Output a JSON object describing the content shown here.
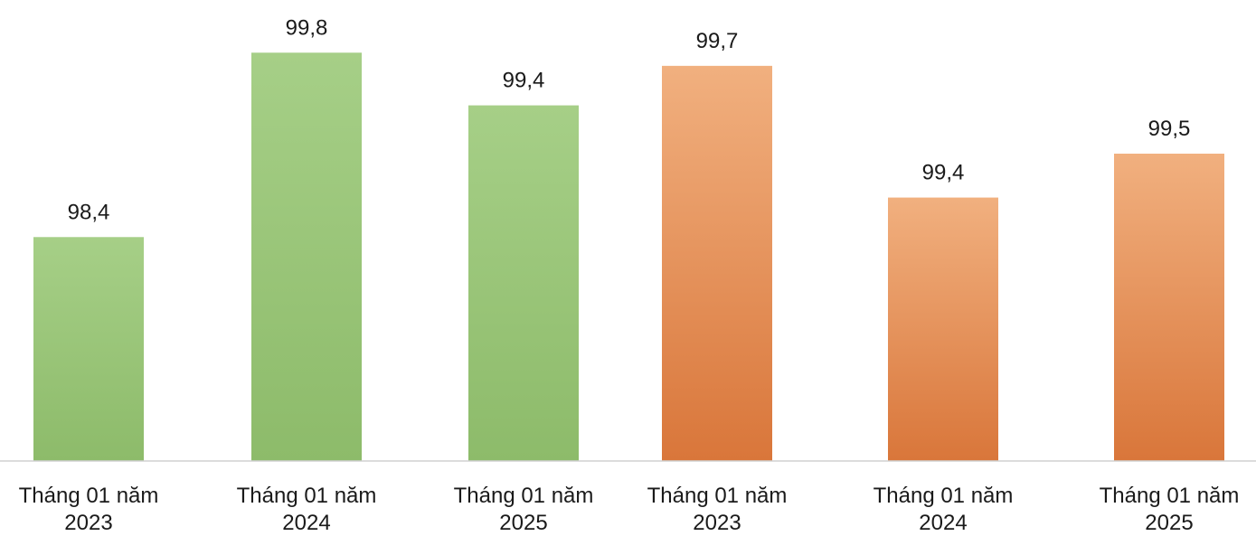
{
  "chart_data": [
    {
      "type": "bar",
      "title": "",
      "xlabel": "",
      "ylabel": "",
      "categories": [
        "Tháng 01 năm 2023",
        "Tháng 01 năm 2024",
        "Tháng 01 năm 2025"
      ],
      "values": [
        98.4,
        99.8,
        99.4
      ],
      "value_labels": [
        "98,4",
        "99,8",
        "99,4"
      ],
      "ylim": [
        96.7,
        100.2
      ],
      "color": "#8dbb6a",
      "color_light": "#a6cf87",
      "grid": false,
      "legend": "none"
    },
    {
      "type": "bar",
      "title": "",
      "xlabel": "",
      "ylabel": "",
      "categories": [
        "Tháng 01 năm 2023",
        "Tháng 01 năm 2024",
        "Tháng 01 năm 2025"
      ],
      "values": [
        99.7,
        99.4,
        99.5
      ],
      "value_labels": [
        "99,7",
        "99,4",
        "99,5"
      ],
      "ylim": [
        98.8,
        99.85
      ],
      "color": "#d9763a",
      "color_light": "#f1b07f",
      "grid": false,
      "legend": "none"
    }
  ]
}
